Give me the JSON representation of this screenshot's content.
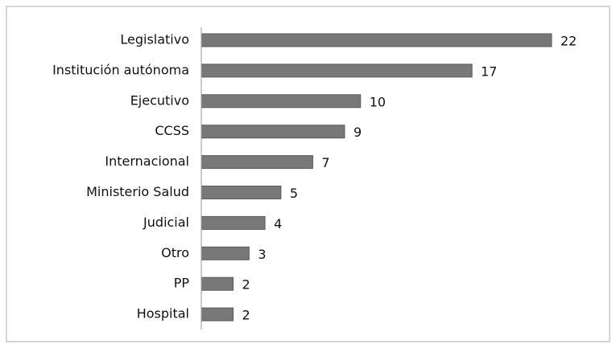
{
  "chart_data": {
    "type": "bar",
    "orientation": "horizontal",
    "categories": [
      "Legislativo",
      "Institución autónoma",
      "Ejecutivo",
      "CCSS",
      "Internacional",
      "Ministerio Salud",
      "Judicial",
      "Otro",
      "PP",
      "Hospital"
    ],
    "values": [
      22,
      17,
      10,
      9,
      7,
      5,
      4,
      3,
      2,
      2
    ],
    "color": "#787878"
  }
}
